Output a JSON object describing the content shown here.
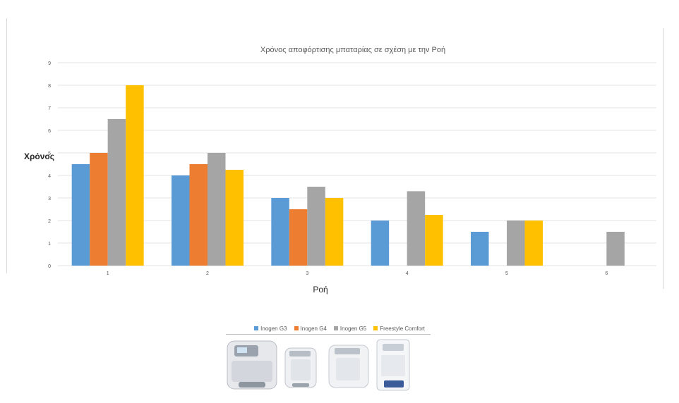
{
  "chart_data": {
    "type": "bar",
    "title": "Χρόνος αποφόρτισης μπαταρίας σε σχέση με την Ροή",
    "xlabel": "Ροή",
    "ylabel": "Χρόνος",
    "categories": [
      "1",
      "2",
      "3",
      "4",
      "5",
      "6"
    ],
    "ylim": [
      0,
      9
    ],
    "yticks": [
      0,
      1,
      2,
      3,
      4,
      5,
      6,
      7,
      8,
      9
    ],
    "grid": true,
    "legend_position": "bottom",
    "series": [
      {
        "name": "Inogen G3",
        "color": "#5b9bd5",
        "values": [
          4.5,
          4,
          3,
          2,
          1.5,
          null
        ]
      },
      {
        "name": "Inogen G4",
        "color": "#ed7d31",
        "values": [
          5,
          4.5,
          2.5,
          null,
          null,
          null
        ]
      },
      {
        "name": "Inogen G5",
        "color": "#a5a5a5",
        "values": [
          6.5,
          5,
          3.5,
          3.3,
          2,
          1.5
        ]
      },
      {
        "name": "Freestyle Comfort",
        "color": "#ffc000",
        "values": [
          8,
          4.25,
          3,
          2.25,
          2,
          null
        ]
      }
    ]
  },
  "colors": {
    "gridline": "#e3e3e3",
    "axis_text": "#595959",
    "title_text": "#595959"
  },
  "images": {
    "devices": [
      "inogen-g3-device-icon",
      "inogen-g4-device-icon",
      "inogen-g5-device-icon",
      "freestyle-comfort-device-icon"
    ]
  }
}
